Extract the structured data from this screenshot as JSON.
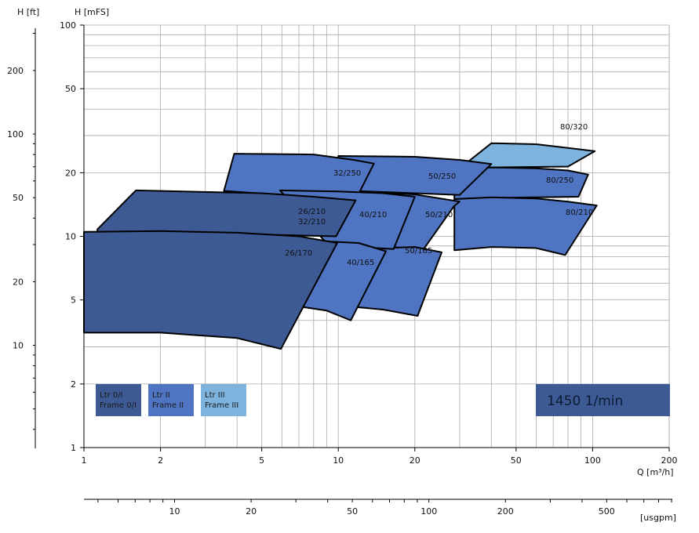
{
  "chart_data": {
    "type": "area",
    "x_axis": {
      "label": "Q [m³/h]",
      "scale": "log",
      "range": [
        1,
        200
      ],
      "ticks": [
        1,
        2,
        5,
        10,
        20,
        50,
        100,
        200
      ],
      "tick_labels": [
        "1",
        "2",
        "5",
        "10",
        "20",
        "50",
        "100",
        "200"
      ]
    },
    "x_axis_secondary": {
      "label": "[usgpm]",
      "ticks": [
        10,
        20,
        50,
        100,
        200,
        500
      ],
      "tick_labels": [
        "10",
        "20",
        "50",
        "100",
        "200",
        "500"
      ]
    },
    "y_axis": {
      "label": "H [mFS]",
      "scale": "log",
      "range": [
        1,
        100
      ],
      "ticks": [
        1,
        2,
        5,
        10,
        20,
        50,
        100
      ],
      "tick_labels": [
        "1",
        "2",
        "5",
        "10",
        "20",
        "50",
        "100"
      ]
    },
    "y_axis_secondary": {
      "label": "H [ft]",
      "ticks": [
        10,
        20,
        50,
        100,
        200
      ],
      "tick_labels": [
        "10",
        "20",
        "50",
        "100",
        "200"
      ]
    },
    "grid": true,
    "zones": [
      {
        "name": "80/320",
        "frame": "III",
        "polygon": [
          [
            30.2,
            21.1
          ],
          [
            40,
            27.6
          ],
          [
            60,
            27.3
          ],
          [
            80,
            26.2
          ],
          [
            102,
            25.3
          ],
          [
            80,
            21.4
          ]
        ]
      },
      {
        "name": "80/250",
        "frame": "II",
        "polygon": [
          [
            28.6,
            20.9
          ],
          [
            40,
            21.2
          ],
          [
            60,
            21.0
          ],
          [
            80,
            20.5
          ],
          [
            96,
            19.6
          ],
          [
            88,
            15.4
          ],
          [
            60,
            15.3
          ],
          [
            40,
            15.2
          ],
          [
            28.6,
            15.0
          ]
        ]
      },
      {
        "name": "80/210",
        "frame": "II",
        "polygon": [
          [
            28.6,
            15.0
          ],
          [
            40,
            15.3
          ],
          [
            60,
            15.1
          ],
          [
            80,
            14.6
          ],
          [
            103.8,
            14.0
          ],
          [
            78,
            8.15
          ],
          [
            60,
            8.8
          ],
          [
            40,
            8.9
          ],
          [
            28.6,
            8.6
          ]
        ]
      },
      {
        "name": "50/250",
        "frame": "II",
        "polygon": [
          [
            10,
            24.0
          ],
          [
            20,
            23.8
          ],
          [
            30,
            23.0
          ],
          [
            40,
            22.0
          ],
          [
            30,
            15.7
          ],
          [
            20,
            16.0
          ],
          [
            10,
            16.5
          ]
        ]
      },
      {
        "name": "50/210",
        "frame": "II",
        "polygon": [
          [
            10,
            16.5
          ],
          [
            20,
            15.8
          ],
          [
            30,
            14.6
          ],
          [
            28.5,
            13.9
          ],
          [
            21.5,
            8.6
          ],
          [
            15,
            9.0
          ],
          [
            10,
            9.2
          ]
        ]
      },
      {
        "name": "50/165",
        "frame": "II",
        "polygon": [
          [
            13.8,
            8.78
          ],
          [
            20,
            8.9
          ],
          [
            25.5,
            8.4
          ],
          [
            20.5,
            4.2
          ],
          [
            15,
            4.5
          ],
          [
            10.2,
            4.7
          ]
        ]
      },
      {
        "name": "32/250",
        "frame": "II",
        "polygon": [
          [
            3.9,
            24.6
          ],
          [
            8,
            24.4
          ],
          [
            11.5,
            23.0
          ],
          [
            13.8,
            22.1
          ],
          [
            11.4,
            14.0
          ],
          [
            6.1,
            15.7
          ],
          [
            3.55,
            16.4
          ]
        ]
      },
      {
        "name": "40/210",
        "frame": "II",
        "polygon": [
          [
            5.9,
            16.5
          ],
          [
            10,
            16.3
          ],
          [
            15,
            16.0
          ],
          [
            20,
            15.4
          ],
          [
            16.5,
            8.7
          ],
          [
            12,
            8.9
          ],
          [
            8.9,
            9.4
          ]
        ]
      },
      {
        "name": "40/165",
        "frame": "II",
        "polygon": [
          [
            8.4,
            9.5
          ],
          [
            12,
            9.3
          ],
          [
            15.4,
            8.5
          ],
          [
            11.2,
            4.0
          ],
          [
            9,
            4.45
          ],
          [
            5.6,
            4.85
          ]
        ]
      },
      {
        "name": "26/210",
        "frame": "0/I",
        "polygon": [
          [
            1.13,
            10.8
          ],
          [
            1.6,
            16.5
          ],
          [
            5,
            16.0
          ],
          [
            8,
            15.4
          ],
          [
            11.7,
            14.8
          ],
          [
            9.8,
            10.0
          ],
          [
            5,
            10.2
          ],
          [
            1.13,
            10.4
          ]
        ]
      },
      {
        "name": "32/210",
        "frame": "0/I",
        "polygon": []
      },
      {
        "name": "26/170",
        "frame": "0/I",
        "polygon": [
          [
            1,
            10.5
          ],
          [
            2,
            10.6
          ],
          [
            4,
            10.4
          ],
          [
            7,
            10.0
          ],
          [
            9.9,
            9.3
          ],
          [
            5.95,
            2.93
          ],
          [
            4,
            3.3
          ],
          [
            2,
            3.5
          ],
          [
            1,
            3.5
          ]
        ]
      }
    ],
    "zone_labels": [
      "80/320",
      "80/250",
      "80/210",
      "50/250",
      "50/210",
      "50/165",
      "32/250",
      "40/210",
      "40/165",
      "26/210",
      "32/210",
      "26/170"
    ],
    "legend": [
      {
        "line1": "Ltr 0/I",
        "line2": "Frame 0/I",
        "color": "#3d5a94"
      },
      {
        "line1": "Ltr II",
        "line2": "Frame II",
        "color": "#4f74c2"
      },
      {
        "line1": "Ltr III",
        "line2": "Frame III",
        "color": "#7db3dd"
      }
    ],
    "speed_label": "1450 1/min",
    "colors": {
      "frame_0_I": "#3d5a94",
      "frame_II": "#4f74c2",
      "frame_III": "#7db3dd",
      "grid": "#aaaaaa",
      "speed_box": "#3d5a94"
    }
  }
}
